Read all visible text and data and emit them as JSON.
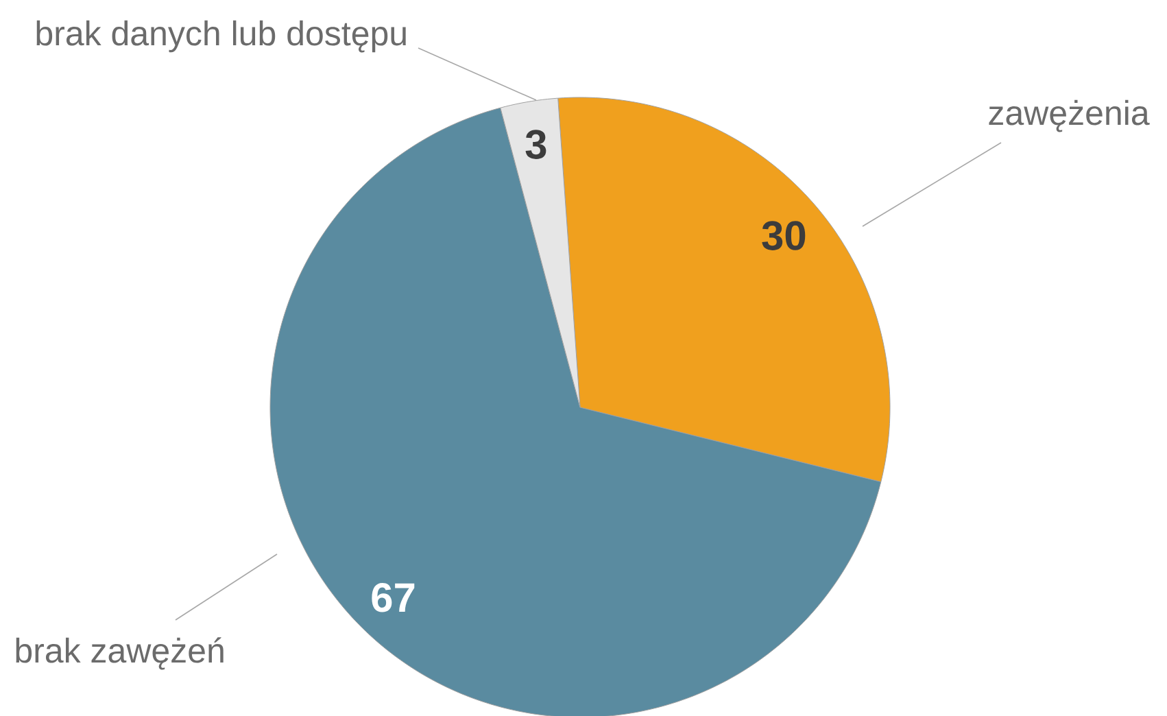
{
  "chart_data": {
    "type": "pie",
    "categories": [
      "zawężenia",
      "brak zawężeń",
      "brak danych lub dostępu"
    ],
    "values": [
      30,
      67,
      3
    ],
    "colors": [
      "#f0a01e",
      "#5a8ba0",
      "#e6e6e6"
    ],
    "data_labels": true
  }
}
